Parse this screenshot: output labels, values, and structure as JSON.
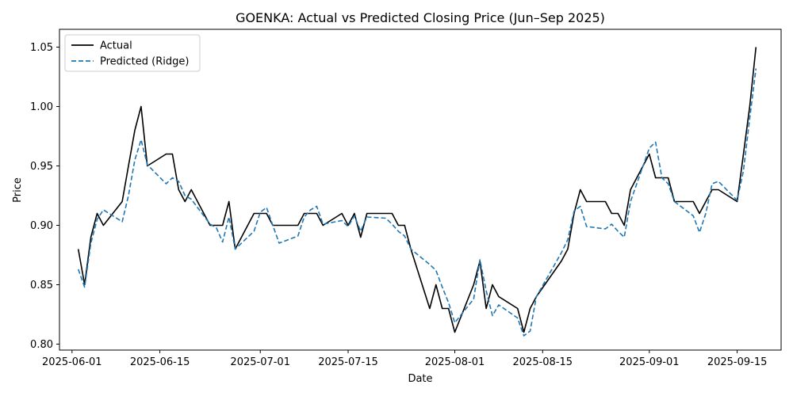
{
  "chart_data": {
    "type": "line",
    "title": "GOENKA: Actual vs Predicted Closing Price (Jun–Sep 2025)",
    "xlabel": "Date",
    "ylabel": "Price",
    "xlim": [
      "2025-05-30",
      "2025-09-22"
    ],
    "ylim": [
      0.795,
      1.065
    ],
    "x_ticks": [
      "2025-06-01",
      "2025-06-15",
      "2025-07-01",
      "2025-07-15",
      "2025-08-01",
      "2025-08-15",
      "2025-09-01",
      "2025-09-15"
    ],
    "y_ticks": [
      0.8,
      0.85,
      0.9,
      0.95,
      1.0,
      1.05
    ],
    "y_tick_labels": [
      "0.80",
      "0.85",
      "0.90",
      "0.95",
      "1.00",
      "1.05"
    ],
    "legend_position": "upper-left",
    "series": [
      {
        "name": "Actual",
        "color": "#000000",
        "style": "solid",
        "points": [
          [
            "2025-06-02",
            0.88
          ],
          [
            "2025-06-03",
            0.85
          ],
          [
            "2025-06-04",
            0.89
          ],
          [
            "2025-06-05",
            0.91
          ],
          [
            "2025-06-06",
            0.9
          ],
          [
            "2025-06-09",
            0.92
          ],
          [
            "2025-06-10",
            0.95
          ],
          [
            "2025-06-11",
            0.98
          ],
          [
            "2025-06-12",
            1.0
          ],
          [
            "2025-06-13",
            0.95
          ],
          [
            "2025-06-16",
            0.96
          ],
          [
            "2025-06-17",
            0.96
          ],
          [
            "2025-06-18",
            0.93
          ],
          [
            "2025-06-19",
            0.92
          ],
          [
            "2025-06-20",
            0.93
          ],
          [
            "2025-06-23",
            0.9
          ],
          [
            "2025-06-24",
            0.9
          ],
          [
            "2025-06-25",
            0.9
          ],
          [
            "2025-06-26",
            0.92
          ],
          [
            "2025-06-27",
            0.88
          ],
          [
            "2025-06-30",
            0.91
          ],
          [
            "2025-07-01",
            0.91
          ],
          [
            "2025-07-02",
            0.91
          ],
          [
            "2025-07-03",
            0.9
          ],
          [
            "2025-07-04",
            0.9
          ],
          [
            "2025-07-07",
            0.9
          ],
          [
            "2025-07-08",
            0.91
          ],
          [
            "2025-07-09",
            0.91
          ],
          [
            "2025-07-10",
            0.91
          ],
          [
            "2025-07-11",
            0.9
          ],
          [
            "2025-07-14",
            0.91
          ],
          [
            "2025-07-15",
            0.9
          ],
          [
            "2025-07-16",
            0.91
          ],
          [
            "2025-07-17",
            0.89
          ],
          [
            "2025-07-18",
            0.91
          ],
          [
            "2025-07-21",
            0.91
          ],
          [
            "2025-07-22",
            0.91
          ],
          [
            "2025-07-23",
            0.9
          ],
          [
            "2025-07-24",
            0.9
          ],
          [
            "2025-07-25",
            0.88
          ],
          [
            "2025-07-28",
            0.83
          ],
          [
            "2025-07-29",
            0.85
          ],
          [
            "2025-07-30",
            0.83
          ],
          [
            "2025-07-31",
            0.83
          ],
          [
            "2025-08-01",
            0.81
          ],
          [
            "2025-08-04",
            0.85
          ],
          [
            "2025-08-05",
            0.87
          ],
          [
            "2025-08-06",
            0.83
          ],
          [
            "2025-08-07",
            0.85
          ],
          [
            "2025-08-08",
            0.84
          ],
          [
            "2025-08-11",
            0.83
          ],
          [
            "2025-08-12",
            0.81
          ],
          [
            "2025-08-13",
            0.83
          ],
          [
            "2025-08-14",
            0.84
          ],
          [
            "2025-08-18",
            0.87
          ],
          [
            "2025-08-19",
            0.88
          ],
          [
            "2025-08-20",
            0.91
          ],
          [
            "2025-08-21",
            0.93
          ],
          [
            "2025-08-22",
            0.92
          ],
          [
            "2025-08-25",
            0.92
          ],
          [
            "2025-08-26",
            0.91
          ],
          [
            "2025-08-27",
            0.91
          ],
          [
            "2025-08-28",
            0.9
          ],
          [
            "2025-08-29",
            0.93
          ],
          [
            "2025-09-01",
            0.96
          ],
          [
            "2025-09-02",
            0.94
          ],
          [
            "2025-09-03",
            0.94
          ],
          [
            "2025-09-04",
            0.94
          ],
          [
            "2025-09-05",
            0.92
          ],
          [
            "2025-09-08",
            0.92
          ],
          [
            "2025-09-09",
            0.91
          ],
          [
            "2025-09-10",
            0.92
          ],
          [
            "2025-09-11",
            0.93
          ],
          [
            "2025-09-12",
            0.93
          ],
          [
            "2025-09-15",
            0.92
          ],
          [
            "2025-09-16",
            0.96
          ],
          [
            "2025-09-17",
            1.0
          ],
          [
            "2025-09-18",
            1.05
          ]
        ]
      },
      {
        "name": "Predicted (Ridge)",
        "color": "#1f77b4",
        "style": "dashed",
        "points": [
          [
            "2025-06-02",
            0.863
          ],
          [
            "2025-06-03",
            0.848
          ],
          [
            "2025-06-04",
            0.885
          ],
          [
            "2025-06-05",
            0.905
          ],
          [
            "2025-06-06",
            0.913
          ],
          [
            "2025-06-09",
            0.903
          ],
          [
            "2025-06-10",
            0.925
          ],
          [
            "2025-06-11",
            0.955
          ],
          [
            "2025-06-12",
            0.972
          ],
          [
            "2025-06-13",
            0.951
          ],
          [
            "2025-06-16",
            0.935
          ],
          [
            "2025-06-17",
            0.94
          ],
          [
            "2025-06-18",
            0.937
          ],
          [
            "2025-06-19",
            0.925
          ],
          [
            "2025-06-20",
            0.922
          ],
          [
            "2025-06-23",
            0.901
          ],
          [
            "2025-06-24",
            0.898
          ],
          [
            "2025-06-25",
            0.886
          ],
          [
            "2025-06-26",
            0.907
          ],
          [
            "2025-06-27",
            0.88
          ],
          [
            "2025-06-30",
            0.895
          ],
          [
            "2025-07-01",
            0.911
          ],
          [
            "2025-07-02",
            0.915
          ],
          [
            "2025-07-03",
            0.9
          ],
          [
            "2025-07-04",
            0.885
          ],
          [
            "2025-07-07",
            0.891
          ],
          [
            "2025-07-08",
            0.907
          ],
          [
            "2025-07-09",
            0.913
          ],
          [
            "2025-07-10",
            0.916
          ],
          [
            "2025-07-11",
            0.901
          ],
          [
            "2025-07-14",
            0.904
          ],
          [
            "2025-07-15",
            0.899
          ],
          [
            "2025-07-16",
            0.908
          ],
          [
            "2025-07-17",
            0.895
          ],
          [
            "2025-07-18",
            0.907
          ],
          [
            "2025-07-21",
            0.906
          ],
          [
            "2025-07-22",
            0.901
          ],
          [
            "2025-07-23",
            0.895
          ],
          [
            "2025-07-24",
            0.891
          ],
          [
            "2025-07-25",
            0.88
          ],
          [
            "2025-07-28",
            0.867
          ],
          [
            "2025-07-29",
            0.862
          ],
          [
            "2025-07-30",
            0.848
          ],
          [
            "2025-07-31",
            0.835
          ],
          [
            "2025-08-01",
            0.818
          ],
          [
            "2025-08-04",
            0.838
          ],
          [
            "2025-08-05",
            0.871
          ],
          [
            "2025-08-06",
            0.845
          ],
          [
            "2025-08-07",
            0.824
          ],
          [
            "2025-08-08",
            0.833
          ],
          [
            "2025-08-11",
            0.822
          ],
          [
            "2025-08-12",
            0.807
          ],
          [
            "2025-08-13",
            0.811
          ],
          [
            "2025-08-14",
            0.84
          ],
          [
            "2025-08-18",
            0.877
          ],
          [
            "2025-08-19",
            0.888
          ],
          [
            "2025-08-20",
            0.912
          ],
          [
            "2025-08-21",
            0.916
          ],
          [
            "2025-08-22",
            0.899
          ],
          [
            "2025-08-25",
            0.897
          ],
          [
            "2025-08-26",
            0.901
          ],
          [
            "2025-08-27",
            0.895
          ],
          [
            "2025-08-28",
            0.89
          ],
          [
            "2025-08-29",
            0.92
          ],
          [
            "2025-09-01",
            0.965
          ],
          [
            "2025-09-02",
            0.97
          ],
          [
            "2025-09-03",
            0.94
          ],
          [
            "2025-09-04",
            0.935
          ],
          [
            "2025-09-05",
            0.92
          ],
          [
            "2025-09-08",
            0.908
          ],
          [
            "2025-09-09",
            0.894
          ],
          [
            "2025-09-10",
            0.91
          ],
          [
            "2025-09-11",
            0.935
          ],
          [
            "2025-09-12",
            0.937
          ],
          [
            "2025-09-15",
            0.921
          ],
          [
            "2025-09-16",
            0.946
          ],
          [
            "2025-09-17",
            0.99
          ],
          [
            "2025-09-18",
            1.032
          ]
        ]
      }
    ]
  }
}
